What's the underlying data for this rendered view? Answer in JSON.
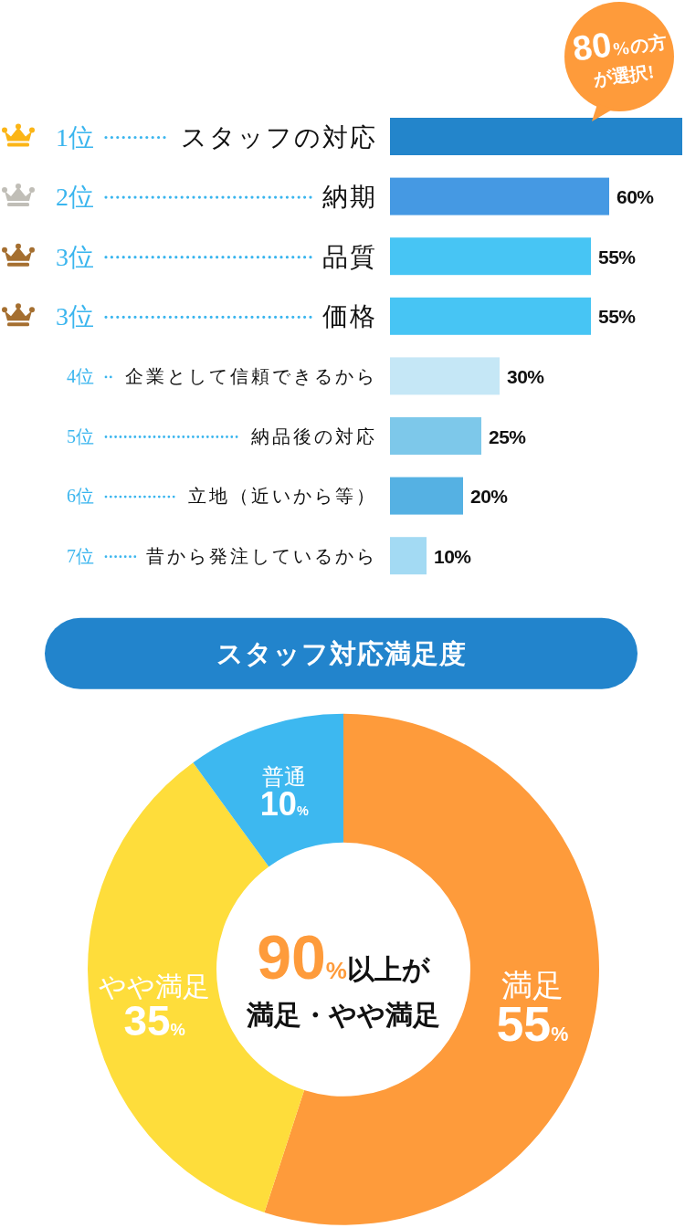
{
  "chart_data": [
    {
      "type": "bar",
      "orientation": "horizontal",
      "tick_labels": "y",
      "categories": [
        "スタッフの対応",
        "納期",
        "品質",
        "価格",
        "企業として信頼できるから",
        "納品後の対応",
        "立地（近いから等）",
        "昔から発注しているから"
      ],
      "values": [
        80,
        60,
        55,
        55,
        30,
        25,
        20,
        10
      ],
      "colors": [
        "#2385cb",
        "#4599e3",
        "#47c5f4",
        "#47c5f4",
        "#c5e7f6",
        "#7dc8ea",
        "#55b1e3",
        "#a3daf3"
      ],
      "value_labels": [
        null,
        "60%",
        "55%",
        "55%",
        "30%",
        "25%",
        "20%",
        "10%"
      ],
      "annotations": [
        "1位",
        "2位",
        "3位",
        "3位",
        "4位",
        "5位",
        "6位",
        "7位",
        {
          "text": "80%の方が選択!",
          "x": 80,
          "y": "スタッフの対応"
        }
      ]
    },
    {
      "type": "donut",
      "title": "スタッフ対応満足度",
      "categories": [
        "満足",
        "やや満足",
        "普通"
      ],
      "values": [
        55,
        35,
        10
      ],
      "colors": [
        "#fe9b3b",
        "#fedd3b",
        "#3db8f0"
      ],
      "value_labels": [
        "55%",
        "35%",
        "10%"
      ],
      "annotations": [
        "90%以上が",
        "満足・やや満足"
      ]
    }
  ]
}
